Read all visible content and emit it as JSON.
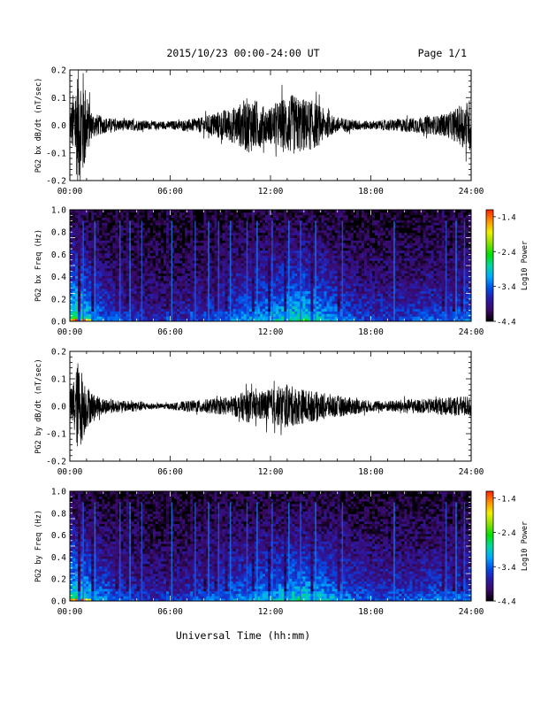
{
  "header": {
    "title": "2015/10/23  00:00-24:00 UT",
    "page": "Page 1/1"
  },
  "footer": {
    "xlabel": "Universal Time (hh:mm)"
  },
  "colorbar": {
    "ticks": [
      "-1.4",
      "-2.4",
      "-3.4",
      "-4.4"
    ],
    "tick_values": [
      -1.4,
      -2.4,
      -3.4,
      -4.4
    ],
    "range": [
      -4.4,
      -1.2
    ],
    "label": "Log10 Power",
    "colors": [
      "#000000",
      "#3a0a66",
      "#2a1aa8",
      "#0050e8",
      "#00aaff",
      "#00d8a0",
      "#00e000",
      "#8ae000",
      "#f0f000",
      "#ff9000",
      "#ff2000"
    ]
  },
  "chart_data": [
    {
      "type": "line",
      "id": "bx_series",
      "ylabel": "PG2 bx dB/dt (nT/sec)",
      "xticks": [
        "00:00",
        "06:00",
        "12:00",
        "18:00",
        "24:00"
      ],
      "yticks": [
        "0.2",
        "0.1",
        "0.0",
        "-0.1",
        "-0.2"
      ],
      "ylim": [
        -0.2,
        0.2
      ],
      "xlim": [
        0,
        24
      ],
      "x_unit": "hours UT",
      "envelope": [
        [
          0.0,
          0.05
        ],
        [
          0.3,
          0.15
        ],
        [
          0.5,
          0.22
        ],
        [
          0.8,
          0.2
        ],
        [
          1.0,
          0.12
        ],
        [
          1.3,
          0.05
        ],
        [
          2.0,
          0.03
        ],
        [
          3.0,
          0.02
        ],
        [
          4.0,
          0.02
        ],
        [
          5.0,
          0.015
        ],
        [
          6.0,
          0.015
        ],
        [
          7.0,
          0.02
        ],
        [
          8.0,
          0.03
        ],
        [
          8.8,
          0.05
        ],
        [
          9.5,
          0.06
        ],
        [
          10.0,
          0.07
        ],
        [
          10.6,
          0.1
        ],
        [
          11.2,
          0.09
        ],
        [
          11.8,
          0.06
        ],
        [
          12.3,
          0.08
        ],
        [
          12.8,
          0.1
        ],
        [
          13.3,
          0.11
        ],
        [
          13.8,
          0.1
        ],
        [
          14.5,
          0.09
        ],
        [
          15.0,
          0.07
        ],
        [
          15.5,
          0.04
        ],
        [
          16.0,
          0.03
        ],
        [
          17.0,
          0.02
        ],
        [
          18.0,
          0.015
        ],
        [
          19.0,
          0.02
        ],
        [
          20.0,
          0.025
        ],
        [
          21.0,
          0.03
        ],
        [
          22.0,
          0.035
        ],
        [
          22.8,
          0.05
        ],
        [
          23.5,
          0.08
        ],
        [
          24.0,
          0.1
        ]
      ]
    },
    {
      "type": "heatmap",
      "id": "bx_spec",
      "ylabel": "PG2 bx Freq (Hz)",
      "xticks": [
        "00:00",
        "06:00",
        "12:00",
        "18:00",
        "24:00"
      ],
      "yticks": [
        "1.0",
        "0.8",
        "0.6",
        "0.4",
        "0.2",
        "0.0"
      ],
      "ylim": [
        0.0,
        1.0
      ],
      "xlim": [
        0,
        24
      ],
      "z_range": [
        -4.4,
        -1.4
      ],
      "activity": [
        [
          0.0,
          0.8
        ],
        [
          0.5,
          1.0
        ],
        [
          1.0,
          0.75
        ],
        [
          2.0,
          0.5
        ],
        [
          3.0,
          0.4
        ],
        [
          4.0,
          0.35
        ],
        [
          5.0,
          0.3
        ],
        [
          6.0,
          0.3
        ],
        [
          7.0,
          0.35
        ],
        [
          8.0,
          0.4
        ],
        [
          9.0,
          0.45
        ],
        [
          10.0,
          0.55
        ],
        [
          11.0,
          0.6
        ],
        [
          12.0,
          0.65
        ],
        [
          13.0,
          0.75
        ],
        [
          14.0,
          0.8
        ],
        [
          15.0,
          0.7
        ],
        [
          16.0,
          0.55
        ],
        [
          17.0,
          0.45
        ],
        [
          18.0,
          0.4
        ],
        [
          19.0,
          0.4
        ],
        [
          20.0,
          0.4
        ],
        [
          21.0,
          0.45
        ],
        [
          22.0,
          0.45
        ],
        [
          23.0,
          0.5
        ],
        [
          24.0,
          0.55
        ]
      ],
      "gaps": [
        0.6,
        1.3,
        2.8,
        3.4,
        4.1,
        5.9,
        7.3,
        8.1,
        8.7,
        9.4,
        10.4,
        11.0,
        11.9,
        12.9,
        13.6,
        14.5,
        16.1,
        19.2,
        22.3,
        22.9,
        23.4
      ]
    },
    {
      "type": "line",
      "id": "by_series",
      "ylabel": "PG2 by dB/dt (nT/sec)",
      "xticks": [
        "00:00",
        "06:00",
        "12:00",
        "18:00",
        "24:00"
      ],
      "yticks": [
        "0.2",
        "0.1",
        "0.0",
        "-0.1",
        "-0.2"
      ],
      "ylim": [
        -0.2,
        0.2
      ],
      "xlim": [
        0,
        24
      ],
      "x_unit": "hours UT",
      "envelope": [
        [
          0.0,
          0.05
        ],
        [
          0.3,
          0.12
        ],
        [
          0.5,
          0.17
        ],
        [
          0.8,
          0.12
        ],
        [
          1.0,
          0.08
        ],
        [
          1.5,
          0.04
        ],
        [
          2.0,
          0.03
        ],
        [
          3.0,
          0.02
        ],
        [
          4.0,
          0.02
        ],
        [
          5.0,
          0.01
        ],
        [
          6.0,
          0.01
        ],
        [
          7.0,
          0.02
        ],
        [
          8.0,
          0.025
        ],
        [
          9.0,
          0.03
        ],
        [
          10.0,
          0.04
        ],
        [
          10.6,
          0.06
        ],
        [
          11.2,
          0.05
        ],
        [
          11.8,
          0.06
        ],
        [
          12.3,
          0.07
        ],
        [
          12.9,
          0.08
        ],
        [
          13.5,
          0.07
        ],
        [
          14.2,
          0.06
        ],
        [
          15.0,
          0.05
        ],
        [
          16.0,
          0.04
        ],
        [
          17.0,
          0.03
        ],
        [
          18.0,
          0.02
        ],
        [
          19.0,
          0.02
        ],
        [
          20.0,
          0.025
        ],
        [
          21.0,
          0.025
        ],
        [
          22.0,
          0.03
        ],
        [
          23.0,
          0.035
        ],
        [
          24.0,
          0.04
        ]
      ]
    },
    {
      "type": "heatmap",
      "id": "by_spec",
      "ylabel": "PG2 by Freq (Hz)",
      "xticks": [
        "00:00",
        "06:00",
        "12:00",
        "18:00",
        "24:00"
      ],
      "yticks": [
        "1.0",
        "0.8",
        "0.6",
        "0.4",
        "0.2",
        "0.0"
      ],
      "ylim": [
        0.0,
        1.0
      ],
      "xlim": [
        0,
        24
      ],
      "z_range": [
        -4.4,
        -1.4
      ],
      "activity": [
        [
          0.0,
          0.8
        ],
        [
          0.5,
          0.9
        ],
        [
          1.0,
          0.75
        ],
        [
          2.0,
          0.55
        ],
        [
          3.0,
          0.45
        ],
        [
          4.0,
          0.4
        ],
        [
          5.0,
          0.35
        ],
        [
          6.0,
          0.35
        ],
        [
          7.0,
          0.4
        ],
        [
          8.0,
          0.45
        ],
        [
          9.0,
          0.5
        ],
        [
          10.0,
          0.55
        ],
        [
          11.0,
          0.6
        ],
        [
          12.0,
          0.65
        ],
        [
          13.0,
          0.7
        ],
        [
          14.0,
          0.75
        ],
        [
          15.0,
          0.7
        ],
        [
          16.0,
          0.6
        ],
        [
          17.0,
          0.5
        ],
        [
          18.0,
          0.45
        ],
        [
          19.0,
          0.45
        ],
        [
          20.0,
          0.45
        ],
        [
          21.0,
          0.45
        ],
        [
          22.0,
          0.5
        ],
        [
          23.0,
          0.5
        ],
        [
          24.0,
          0.5
        ]
      ],
      "gaps": [
        0.6,
        1.3,
        2.8,
        3.4,
        4.1,
        5.9,
        7.3,
        8.1,
        8.7,
        9.4,
        10.4,
        11.0,
        11.9,
        12.9,
        13.6,
        14.5,
        16.1,
        19.2,
        22.3,
        22.9,
        23.4
      ]
    }
  ]
}
